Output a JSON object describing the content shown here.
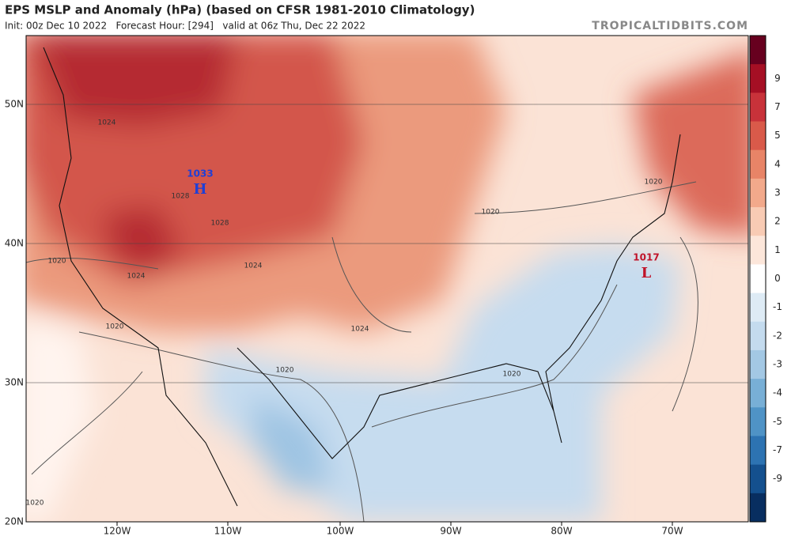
{
  "header": {
    "title": "EPS MSLP and Anomaly (hPa) (based on CFSR 1981-2010 Climatology)",
    "subtitle": "Init: 00z Dec 10 2022   Forecast Hour: [294]   valid at 06z Thu, Dec 22 2022",
    "credit": "TROPICALTIDBITS.COM"
  },
  "colorbar": {
    "labels": [
      "9",
      "7",
      "5",
      "4",
      "3",
      "2",
      "1",
      "0",
      "-1",
      "-2",
      "-3",
      "-4",
      "-5",
      "-7",
      "-9"
    ],
    "colors": [
      "#67001f",
      "#a50f24",
      "#c8323a",
      "#d95a4a",
      "#e88467",
      "#f2a98b",
      "#f8cbb4",
      "#fce6da",
      "#ffffff",
      "#deebf5",
      "#c4dbee",
      "#a3c8e4",
      "#78afd6",
      "#4f93c6",
      "#2d73b2",
      "#14508e",
      "#082e60"
    ]
  },
  "axes": {
    "lat_labels": [
      "50N",
      "40N",
      "30N",
      "20N"
    ],
    "lon_labels": [
      "120W",
      "110W",
      "100W",
      "90W",
      "80W",
      "70W"
    ]
  },
  "centers": [
    {
      "value": "1033",
      "symbol": "H"
    },
    {
      "value": "1017",
      "symbol": "L"
    }
  ],
  "contour_labels": [
    "1024",
    "1028",
    "1028",
    "1024",
    "1024",
    "1020",
    "1020",
    "1020",
    "1024",
    "1020",
    "1020",
    "1020",
    "1020"
  ]
}
